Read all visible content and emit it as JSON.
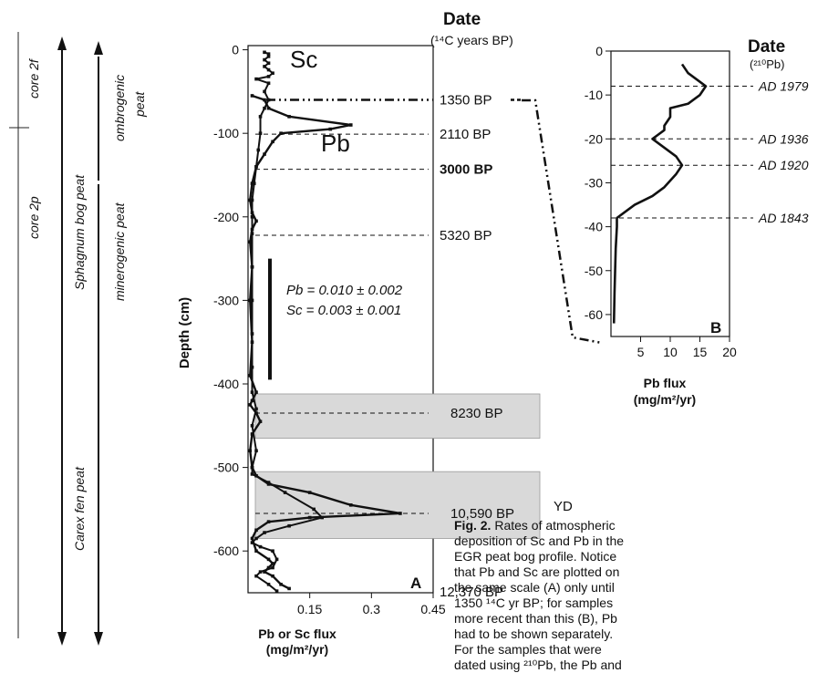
{
  "left_labels": {
    "core_top": "core 2f",
    "core_bottom": "core 2p",
    "peat_long_top": "Sphagnum bog peat",
    "peat_long_bottom": "Carex fen peat",
    "peat_a": "ombrogenic",
    "peat_b": "peat",
    "peat_c": "minerogenic peat"
  },
  "caption": {
    "fig_label": "Fig. 2.",
    "lines": [
      "Rates of atmospheric",
      "deposition of Sc and Pb in the",
      "EGR peat bog profile. Notice",
      "that Pb and Sc are plotted on",
      "the same scale (A) only until",
      "1350 ¹⁴C yr BP; for samples",
      "more recent than this (B), Pb",
      "had to be shown separately.",
      "For the samples that were",
      "dated using ²¹⁰Pb, the Pb and"
    ]
  },
  "chart_data": [
    {
      "panel": "A",
      "type": "line",
      "ylabel": "Depth (cm)",
      "xlabel": "Pb or Sc flux",
      "xlabel_units": "(mg/m²/yr)",
      "xlim": [
        0,
        0.45
      ],
      "ylim": [
        -650,
        5
      ],
      "xticks": [
        "0.15",
        "0.3",
        "0.45"
      ],
      "yticks": [
        "0",
        "-100",
        "-200",
        "-300",
        "-400",
        "-500",
        "-600"
      ],
      "date_header": "Date",
      "date_sub": "(¹⁴C years BP)",
      "series": [
        {
          "name": "Sc",
          "x": [
            0.04,
            0.05,
            0.05,
            0.04,
            0.05,
            0.04,
            0.05,
            0.06,
            0.05,
            0.02,
            0.05,
            0.04,
            0.05,
            0.04,
            0.03,
            0.03,
            0.025,
            0.02,
            0.015,
            0.01,
            0.01,
            0.01,
            0.01,
            0.01,
            0.01,
            0.01,
            0.01,
            0.02,
            0.01,
            0.02,
            0.01,
            0.01,
            0.05,
            0.09,
            0.16,
            0.18,
            0.1,
            0.04,
            0.02,
            0.01,
            0.03,
            0.06,
            0.07,
            0.06,
            0.03,
            0.02,
            0.05,
            0.07
          ],
          "y": [
            -3,
            -5,
            -8,
            -12,
            -16,
            -20,
            -24,
            -28,
            -32,
            -35,
            -40,
            -50,
            -60,
            -70,
            -80,
            -100,
            -120,
            -140,
            -160,
            -180,
            -200,
            -220,
            -260,
            -300,
            -340,
            -380,
            -410,
            -430,
            -450,
            -480,
            -500,
            -508,
            -518,
            -530,
            -550,
            -560,
            -570,
            -578,
            -585,
            -590,
            -595,
            -600,
            -610,
            -620,
            -625,
            -630,
            -640,
            -648
          ]
        },
        {
          "name": "Pb",
          "x": [
            0.01,
            0.04,
            0.05,
            0.1,
            0.25,
            0.2,
            0.08,
            0.06,
            0.04,
            0.02,
            0.01,
            0.005,
            0.01,
            0.02,
            0.01,
            0.005,
            0.01,
            0.005,
            0.01,
            0.005,
            0.02,
            0.01,
            0.005,
            0.02,
            0.03,
            0.01,
            0.005,
            0.01,
            0.02,
            0.05,
            0.15,
            0.25,
            0.37,
            0.15,
            0.05,
            0.02,
            0.01,
            0.02,
            0.05,
            0.06,
            0.05,
            0.04,
            0.06,
            0.08,
            0.1
          ],
          "y": [
            -55,
            -60,
            -70,
            -80,
            -90,
            -95,
            -100,
            -110,
            -125,
            -140,
            -160,
            -180,
            -195,
            -205,
            -215,
            -230,
            -260,
            -300,
            -350,
            -390,
            -410,
            -420,
            -425,
            -435,
            -445,
            -460,
            -480,
            -500,
            -510,
            -520,
            -530,
            -545,
            -555,
            -560,
            -565,
            -575,
            -585,
            -600,
            -610,
            -615,
            -620,
            -625,
            -630,
            -640,
            -645
          ]
        }
      ],
      "bar_annotation": {
        "from": -250,
        "to": -395,
        "text": [
          "Pb = 0.010 ± 0.002",
          "Sc = 0.003 ± 0.001"
        ]
      },
      "date_lines": [
        {
          "depth": -60,
          "label": "1350 BP",
          "style": "dashdot",
          "bold": false
        },
        {
          "depth": -101,
          "label": "2110 BP",
          "style": "dash",
          "bold": false
        },
        {
          "depth": -143,
          "label": "3000 BP",
          "style": "dash",
          "bold": true
        },
        {
          "depth": -222,
          "label": "5320 BP",
          "style": "dash",
          "bold": false
        },
        {
          "depth": -435,
          "label": "8230 BP",
          "style": "dash",
          "bold": false
        },
        {
          "depth": -555,
          "label": "10,590 BP",
          "style": "dash",
          "bold": false
        },
        {
          "depth": -650,
          "label": "12,370 BP",
          "style": "none",
          "bold": false
        }
      ],
      "shaded_bands": [
        [
          -412,
          -465
        ],
        [
          -505,
          -585
        ]
      ],
      "yd_label": "YD"
    },
    {
      "panel": "B",
      "type": "line",
      "ylabel": "",
      "xlabel": "Pb flux",
      "xlabel_units": "(mg/m²/yr)",
      "xlim": [
        0,
        20
      ],
      "ylim": [
        -65,
        0
      ],
      "xticks": [
        "5",
        "10",
        "15",
        "20"
      ],
      "yticks": [
        "0",
        "-10",
        "-20",
        "-30",
        "-40",
        "-50",
        "-60"
      ],
      "date_header": "Date",
      "date_sub": "(²¹⁰Pb)",
      "series": [
        {
          "name": "Pb",
          "x": [
            12,
            13,
            15,
            16,
            15,
            13,
            10,
            10,
            9,
            9,
            8,
            7,
            9,
            11,
            12,
            11,
            9,
            7,
            4,
            2,
            1,
            1,
            0.8,
            0.7,
            0.6,
            0.5
          ],
          "y": [
            -3,
            -5,
            -7,
            -8,
            -10,
            -12,
            -13,
            -15,
            -17,
            -18,
            -19,
            -20,
            -22,
            -24,
            -26,
            -28,
            -31,
            -33,
            -35,
            -37,
            -38,
            -40,
            -45,
            -50,
            -55,
            -62
          ]
        }
      ],
      "date_lines": [
        {
          "depth": -8,
          "label": "AD 1979"
        },
        {
          "depth": -20,
          "label": "AD 1936"
        },
        {
          "depth": -26,
          "label": "AD 1920"
        },
        {
          "depth": -38,
          "label": "AD 1843"
        }
      ]
    }
  ]
}
